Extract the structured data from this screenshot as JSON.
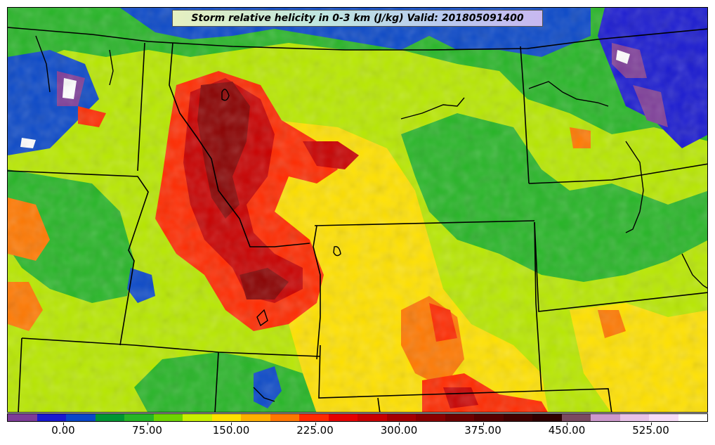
{
  "title": "Storm relative helicity in 0-3 km (J/kg) Valid: 201805091400",
  "colorbar": {
    "colors": [
      "#7d3c98",
      "#1a1ad0",
      "#0a48c8",
      "#009633",
      "#27b527",
      "#6fd400",
      "#c8f000",
      "#ffe100",
      "#ffb000",
      "#ff7800",
      "#ff2a00",
      "#e60000",
      "#c80000",
      "#a50000",
      "#8a0000",
      "#6e0000",
      "#560000",
      "#420000",
      "#2f0000",
      "#7a4a60",
      "#cc99cc",
      "#e9c3e9",
      "#f7ddf7",
      "#ffffff"
    ],
    "tick_labels": [
      "0.00",
      "75.00",
      "150.00",
      "225.00",
      "300.00",
      "375.00",
      "450.00",
      "525.00"
    ]
  },
  "colors": {
    "field_base": "#b8e800",
    "boundary": "#000000"
  }
}
